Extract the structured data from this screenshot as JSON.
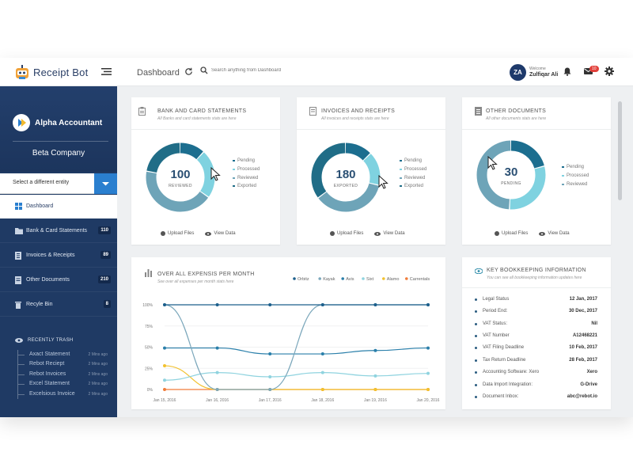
{
  "app": {
    "name": "Receipt Bot"
  },
  "header": {
    "page": "Dashboard",
    "search_placeholder": "Search anything from Dashboard",
    "avatar": "ZA",
    "welcome": "Welcome",
    "user": "Zulfiqar Ali",
    "mail_badge": "10"
  },
  "sidebar": {
    "account": "Alpha Accountant",
    "company": "Beta Company",
    "entity_select": "Select a different entity",
    "nav": [
      {
        "label": "Dashboard",
        "count": ""
      },
      {
        "label": "Bank & Card Statements",
        "count": "110"
      },
      {
        "label": "Invoices & Receipts",
        "count": "89"
      },
      {
        "label": "Other Documents",
        "count": "210"
      },
      {
        "label": "Recyle Bin",
        "count": "8"
      }
    ],
    "trash_title": "RECENTLY TRASH",
    "trash": [
      {
        "name": "Axact Statement",
        "ago": "2 Mins ago"
      },
      {
        "name": "Rebot Reciept",
        "ago": "2 Mins ago"
      },
      {
        "name": "Rebot Invoices",
        "ago": "2 Mins ago"
      },
      {
        "name": "Excel Statement",
        "ago": "2 Mins ago"
      },
      {
        "name": "Excelsious Invoice",
        "ago": "2 Mins ago"
      }
    ]
  },
  "cards": [
    {
      "title": "BANK AND CARD STATEMENTS",
      "subtitle": "All Banks and card statements stats are here",
      "value": "100",
      "label": "REVIEWED",
      "legend": [
        "Pending",
        "Processed",
        "Reviewed",
        "Exported"
      ],
      "upload": "Upload Files",
      "view": "View Data",
      "segments": [
        0.12,
        0.23,
        0.43,
        0.22
      ]
    },
    {
      "title": "INVOICES AND RECEIPTS",
      "subtitle": "All invoices and receipts stats are here",
      "value": "180",
      "label": "EXPORTED",
      "legend": [
        "Pending",
        "Processed",
        "Reviewed",
        "Exported"
      ],
      "upload": "Upload Files",
      "view": "View Data",
      "segments": [
        0.13,
        0.16,
        0.36,
        0.35
      ]
    },
    {
      "title": "OTHER DOCUMENTS",
      "subtitle": "All other documents stats are here",
      "value": "30",
      "label": "PENDING",
      "legend": [
        "Pending",
        "Processed",
        "Reviewed"
      ],
      "upload": "Upload Files",
      "view": "View Data",
      "segments": [
        0.21,
        0.3,
        0.49
      ]
    }
  ],
  "colors": {
    "pending": "#1c6e8f",
    "processed": "#7fd2e0",
    "reviewed": "#6ea4b8",
    "exported": "#206d87"
  },
  "expense": {
    "title": "OVER ALL EXPENSIS PER MONTH",
    "subtitle": "See over all expenses per month stats here"
  },
  "chart_data": {
    "type": "line",
    "title": "OVER ALL EXPENSIS PER MONTH",
    "categories": [
      "Jan 15, 2016",
      "Jan 16, 2016",
      "Jan 17, 2016",
      "Jan 18, 2016",
      "Jan 19, 2016",
      "Jan 20, 2016"
    ],
    "y_ticks": [
      "100%",
      "75%",
      "50%",
      "25%",
      "0%"
    ],
    "ylim": [
      0,
      100
    ],
    "series": [
      {
        "name": "Orbitz",
        "color": "#1c5f8c",
        "values": [
          100,
          100,
          100,
          100,
          100,
          100
        ]
      },
      {
        "name": "Kayak",
        "color": "#7ba7bb",
        "values": [
          100,
          0,
          0,
          100,
          100,
          100
        ]
      },
      {
        "name": "Avis",
        "color": "#2a7faa",
        "values": [
          49,
          49,
          42,
          42,
          46,
          49
        ]
      },
      {
        "name": "Sixt",
        "color": "#8fd3df",
        "values": [
          11,
          20,
          15,
          20,
          16,
          19
        ]
      },
      {
        "name": "Alamo",
        "color": "#f2c12e",
        "values": [
          28,
          0,
          0,
          0,
          0,
          0
        ]
      },
      {
        "name": "Carrentals",
        "color": "#f07c3a",
        "values": [
          0,
          0,
          0,
          0,
          0,
          0
        ]
      }
    ]
  },
  "bookkeeping": {
    "title": "KEY BOOKKEEPING INFORMATION",
    "subtitle": "You can see all bookkeeping information updates here",
    "rows": [
      {
        "k": "Legal Status",
        "v": "12 Jan, 2017"
      },
      {
        "k": "Period End:",
        "v": "30 Dec, 2017"
      },
      {
        "k": "VAT Status:",
        "v": "Nil"
      },
      {
        "k": "VAT Number",
        "v": "A12468221"
      },
      {
        "k": "VAT Filing Deadline",
        "v": "10 Feb, 2017"
      },
      {
        "k": "Tax Return Deadline",
        "v": "28 Feb, 2017"
      },
      {
        "k": "Accounting Software: Xero",
        "v": "Xero"
      },
      {
        "k": "Data Import Integration:",
        "v": "G-Drive"
      },
      {
        "k": "Document Inbox:",
        "v": "abc@rebot.io"
      }
    ]
  }
}
